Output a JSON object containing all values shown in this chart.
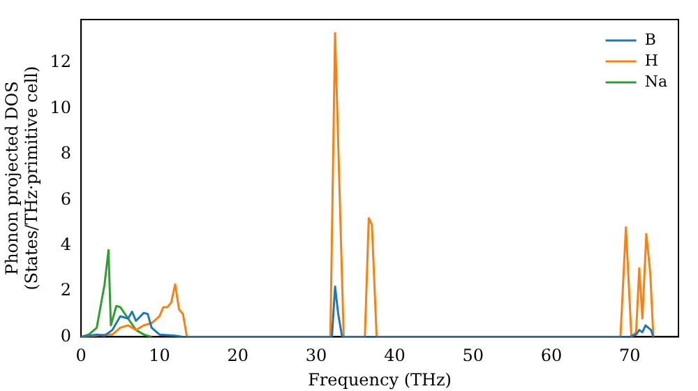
{
  "chart_data": {
    "type": "line",
    "xlabel": "Frequency (THz)",
    "ylabel": "Phonon projected DOS\n(States/THz·primitive cell)",
    "xlim": [
      0,
      76.2
    ],
    "ylim": [
      0,
      13.9
    ],
    "xticks": [
      0,
      10,
      20,
      30,
      40,
      50,
      60,
      70
    ],
    "yticks": [
      0,
      2,
      4,
      6,
      8,
      10,
      12
    ],
    "legend": "top right",
    "grid": false,
    "marker": "none",
    "line_style": "solid",
    "series": [
      {
        "name": "B",
        "color": "#1f77b4",
        "x": [
          0,
          2,
          3,
          4,
          5,
          6,
          6.5,
          7,
          8,
          8.5,
          9,
          10,
          12,
          13,
          32,
          32.4,
          32.8,
          33.3,
          70,
          70.8,
          71.2,
          71.6,
          72,
          72.7,
          73
        ],
        "values": [
          0,
          0.1,
          0.05,
          0.3,
          0.9,
          0.8,
          1.1,
          0.7,
          1.05,
          1.0,
          0.4,
          0.1,
          0.05,
          0,
          0,
          2.2,
          1.0,
          0,
          0,
          0.1,
          0.3,
          0.2,
          0.5,
          0.3,
          0
        ]
      },
      {
        "name": "H",
        "color": "#ff7f0e",
        "x": [
          0,
          3,
          4,
          5,
          6,
          7,
          8,
          9,
          10,
          10.5,
          11,
          11.5,
          12,
          12.5,
          13,
          13.5,
          31.8,
          32.4,
          33.5,
          36.2,
          36.7,
          37.1,
          37.7,
          68.8,
          69.5,
          70.2,
          70.8,
          71.2,
          71.6,
          72.1,
          72.6,
          73
        ],
        "values": [
          0,
          0.1,
          0.1,
          0.4,
          0.5,
          0.3,
          0.5,
          0.6,
          0.9,
          1.3,
          1.3,
          1.5,
          2.3,
          1.2,
          1.0,
          0,
          0,
          13.3,
          0,
          0,
          5.2,
          4.9,
          0,
          0,
          4.8,
          0,
          0.2,
          3.0,
          0.8,
          4.5,
          2.8,
          0
        ]
      },
      {
        "name": "Na",
        "color": "#2ca02c",
        "x": [
          0,
          1,
          2,
          3,
          3.5,
          3.8,
          4.5,
          5,
          6,
          7,
          8,
          9
        ],
        "values": [
          0,
          0.1,
          0.4,
          2.3,
          3.8,
          0.5,
          1.35,
          1.3,
          0.8,
          0.3,
          0.1,
          0
        ]
      }
    ]
  }
}
